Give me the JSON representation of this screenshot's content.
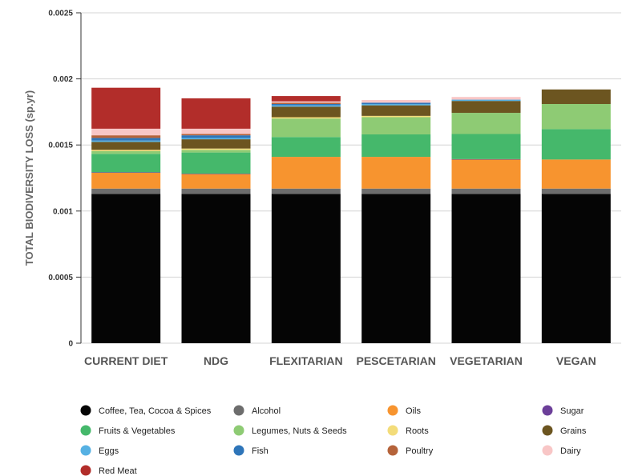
{
  "chart_data": {
    "type": "bar",
    "stacked": true,
    "categories": [
      "CURRENT DIET",
      "NDG",
      "FLEXITARIAN",
      "PESCETARIAN",
      "VEGETARIAN",
      "VEGAN"
    ],
    "ylabel": "TOTAL BIODIVERSITY LOSS (sp.yr)",
    "xlabel": "",
    "ylim": [
      0,
      0.0025
    ],
    "yticks": [
      "0",
      "0.0005",
      "0.001",
      "0.0015",
      "0.002",
      "0.0025"
    ],
    "grid": true,
    "legend_position": "bottom",
    "series": [
      {
        "name": "Coffee, Tea, Cocoa & Spices",
        "color": "#050505",
        "values": [
          0.00113,
          0.00113,
          0.00113,
          0.00113,
          0.00113,
          0.00113
        ]
      },
      {
        "name": "Alcohol",
        "color": "#6d6d6d",
        "values": [
          4e-05,
          4e-05,
          4e-05,
          4e-05,
          4e-05,
          4e-05
        ]
      },
      {
        "name": "Oils",
        "color": "#f7942f",
        "values": [
          0.00012,
          0.00011,
          0.00024,
          0.00024,
          0.00022,
          0.00022
        ]
      },
      {
        "name": "Sugar",
        "color": "#6c3f99",
        "values": [
          3e-06,
          3e-06,
          0.0,
          0.0,
          3e-06,
          0.0
        ]
      },
      {
        "name": "Fruits & Vegetables",
        "color": "#45b86b",
        "values": [
          0.00014,
          0.00016,
          0.00015,
          0.00017,
          0.00019,
          0.00023
        ]
      },
      {
        "name": "Legumes, Nuts & Seeds",
        "color": "#8ecb74",
        "values": [
          2e-05,
          2e-05,
          0.00014,
          0.00013,
          0.00016,
          0.00019
        ]
      },
      {
        "name": "Roots",
        "color": "#f3dc7a",
        "values": [
          1e-05,
          1e-05,
          1e-05,
          1e-05,
          0.0,
          0.0
        ]
      },
      {
        "name": "Grains",
        "color": "#6c5520",
        "values": [
          6e-05,
          7e-05,
          8e-05,
          8e-05,
          9e-05,
          0.00011
        ]
      },
      {
        "name": "Eggs",
        "color": "#56b1e3",
        "values": [
          1e-05,
          1e-05,
          1e-05,
          1e-05,
          1e-05,
          0.0
        ]
      },
      {
        "name": "Fish",
        "color": "#2e75b9",
        "values": [
          2e-05,
          2e-05,
          1e-05,
          1e-05,
          0.0,
          0.0
        ]
      },
      {
        "name": "Poultry",
        "color": "#b5633a",
        "values": [
          2e-05,
          1e-05,
          1e-05,
          0.0,
          0.0,
          0.0
        ]
      },
      {
        "name": "Dairy",
        "color": "#f8c6c6",
        "values": [
          5e-05,
          4e-05,
          1e-05,
          2e-05,
          2e-05,
          0.0
        ]
      },
      {
        "name": "Red Meat",
        "color": "#b22d2a",
        "values": [
          0.00031,
          0.00023,
          4e-05,
          0.0,
          0.0,
          0.0
        ]
      }
    ]
  }
}
